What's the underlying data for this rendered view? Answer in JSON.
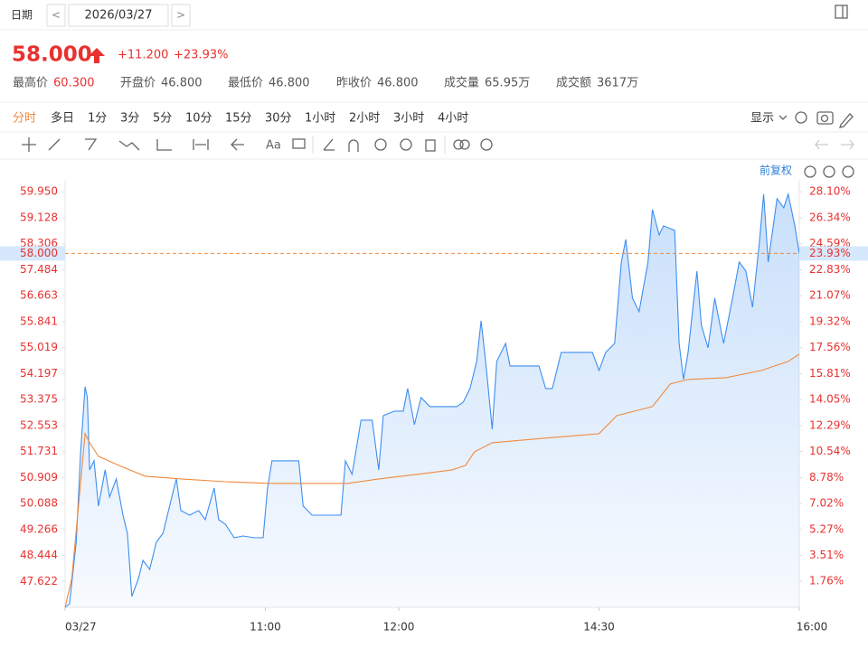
{
  "header": {
    "date_label": "日期",
    "prev": "<",
    "date": "2026/03/27",
    "next": ">",
    "price": "58.000",
    "change": "+11.200",
    "change_pct": "+23.93%",
    "stats": [
      {
        "label": "最高价",
        "value": "60.300"
      },
      {
        "label": "开盘价",
        "value": "46.800"
      },
      {
        "label": "最低价",
        "value": "46.800"
      },
      {
        "label": "昨收价",
        "value": "46.800"
      },
      {
        "label": "成交量",
        "value": "65.95万"
      },
      {
        "label": "成交额",
        "value": "3617万"
      }
    ]
  },
  "tabs": [
    "分时",
    "多日",
    "1分",
    "3分",
    "5分",
    "10分",
    "15分",
    "30分",
    "1小时",
    "2小时",
    "3小时",
    "4小时"
  ],
  "active_tab": 0,
  "display": "显示",
  "toolbar_text": "Aa",
  "adjust": "前复权",
  "chart_data": {
    "type": "line",
    "axis_label_color": "#e8312f",
    "xlim": [
      0,
      330
    ],
    "xticks": [
      {
        "value": 0,
        "label": "03/27"
      },
      {
        "value": 90,
        "label": "11:00"
      },
      {
        "value": 150,
        "label": "12:00"
      },
      {
        "value": 240,
        "label": "14:30"
      },
      {
        "value": 330,
        "label": "16:00"
      }
    ],
    "ylim": [
      46.8,
      60.3
    ],
    "yticks": [
      {
        "value": 59.95,
        "label": "59.950"
      },
      {
        "value": 59.128,
        "label": "59.128"
      },
      {
        "value": 58.306,
        "label": "58.306"
      },
      {
        "value": 57.484,
        "label": "57.484"
      },
      {
        "value": 56.663,
        "label": "56.663"
      },
      {
        "value": 55.841,
        "label": "55.841"
      },
      {
        "value": 55.019,
        "label": "55.019"
      },
      {
        "value": 54.197,
        "label": "54.197"
      },
      {
        "value": 53.375,
        "label": "53.375"
      },
      {
        "value": 52.553,
        "label": "52.553"
      },
      {
        "value": 51.731,
        "label": "51.731"
      },
      {
        "value": 50.909,
        "label": "50.909"
      },
      {
        "value": 50.088,
        "label": "50.088"
      },
      {
        "value": 49.266,
        "label": "49.266"
      },
      {
        "value": 48.444,
        "label": "48.444"
      },
      {
        "value": 47.622,
        "label": "47.622"
      }
    ],
    "y2lim": [
      0,
      28.846
    ],
    "y2ticks": [
      {
        "value": 28.1,
        "label": "28.10%"
      },
      {
        "value": 26.34,
        "label": "26.34%"
      },
      {
        "value": 24.59,
        "label": "24.59%"
      },
      {
        "value": 22.83,
        "label": "22.83%"
      },
      {
        "value": 21.07,
        "label": "21.07%"
      },
      {
        "value": 19.32,
        "label": "19.32%"
      },
      {
        "value": 17.56,
        "label": "17.56%"
      },
      {
        "value": 15.81,
        "label": "15.81%"
      },
      {
        "value": 14.05,
        "label": "14.05%"
      },
      {
        "value": 12.29,
        "label": "12.29%"
      },
      {
        "value": 10.54,
        "label": "10.54%"
      },
      {
        "value": 8.78,
        "label": "8.78%"
      },
      {
        "value": 7.02,
        "label": "7.02%"
      },
      {
        "value": 5.27,
        "label": "5.27%"
      },
      {
        "value": 3.51,
        "label": "3.51%"
      },
      {
        "value": 1.76,
        "label": "1.76%"
      }
    ],
    "current": {
      "value": 58,
      "label": "58.000"
    },
    "current_pct": {
      "value": 23.93,
      "label": "23.93%"
    },
    "series": [
      {
        "color": "#3d8ef0",
        "area": true,
        "x": [
          0,
          2,
          5,
          7,
          9,
          10,
          11,
          13,
          15,
          18,
          20,
          23,
          26,
          28,
          30,
          33,
          35,
          38,
          41,
          44,
          47,
          50,
          52,
          56,
          60,
          63,
          67,
          69,
          72,
          76,
          80,
          85,
          89,
          91,
          93,
          99,
          105,
          107,
          111,
          117,
          124,
          126,
          129,
          133,
          138,
          141,
          143,
          148,
          152,
          154,
          157,
          160,
          164,
          168,
          172,
          176,
          179,
          182,
          185,
          187,
          189,
          192,
          194,
          198,
          200,
          206,
          213,
          216,
          219,
          223,
          227,
          233,
          237,
          240,
          243,
          247,
          250,
          252,
          255,
          258,
          262,
          264,
          267,
          269,
          274,
          276,
          278,
          280,
          284,
          286,
          289,
          292,
          296,
          300,
          303,
          306,
          309,
          312,
          314,
          316,
          320,
          323,
          325,
          328,
          330
        ],
        "values": [
          46.8,
          46.914,
          48.86,
          51.721,
          53.781,
          53.438,
          51.149,
          51.435,
          50.005,
          51.149,
          50.291,
          50.863,
          49.718,
          49.146,
          47.143,
          47.716,
          48.288,
          48.002,
          48.86,
          49.146,
          50.005,
          50.863,
          49.862,
          49.718,
          49.862,
          49.575,
          50.577,
          49.575,
          49.432,
          49.003,
          49.06,
          49.003,
          49.003,
          50.577,
          51.435,
          51.435,
          51.435,
          50.005,
          49.718,
          49.718,
          49.718,
          51.435,
          51.006,
          52.723,
          52.723,
          51.149,
          52.866,
          53.009,
          53.009,
          53.724,
          52.58,
          53.438,
          53.152,
          53.152,
          53.152,
          53.152,
          53.295,
          53.724,
          54.583,
          55.87,
          54.583,
          52.437,
          54.583,
          55.155,
          54.439,
          54.439,
          54.439,
          53.724,
          53.724,
          54.869,
          54.869,
          54.869,
          54.869,
          54.296,
          54.869,
          55.155,
          57.73,
          58.445,
          56.585,
          56.156,
          57.73,
          59.389,
          58.588,
          58.874,
          58.731,
          55.155,
          54.01,
          54.869,
          57.444,
          55.727,
          55.012,
          56.585,
          55.155,
          56.585,
          57.73,
          57.444,
          56.299,
          58.302,
          59.876,
          57.73,
          59.733,
          59.446,
          59.876,
          58.874,
          58
        ]
      },
      {
        "color": "#f08a3e",
        "area": false,
        "x": [
          0,
          3,
          6,
          9,
          11,
          15,
          24,
          36,
          52,
          72,
          93,
          113,
          127,
          141,
          158,
          174,
          180,
          184,
          192,
          215,
          240,
          248,
          256,
          264,
          272,
          280,
          297,
          313,
          325,
          330
        ],
        "values": [
          46.8,
          47.716,
          50.005,
          52.294,
          52.008,
          51.578,
          51.292,
          50.949,
          50.863,
          50.777,
          50.72,
          50.72,
          50.72,
          50.863,
          51.006,
          51.149,
          51.292,
          51.721,
          52.008,
          52.151,
          52.294,
          52.866,
          53.009,
          53.152,
          53.867,
          54.01,
          54.067,
          54.296,
          54.583,
          54.812
        ]
      }
    ]
  }
}
